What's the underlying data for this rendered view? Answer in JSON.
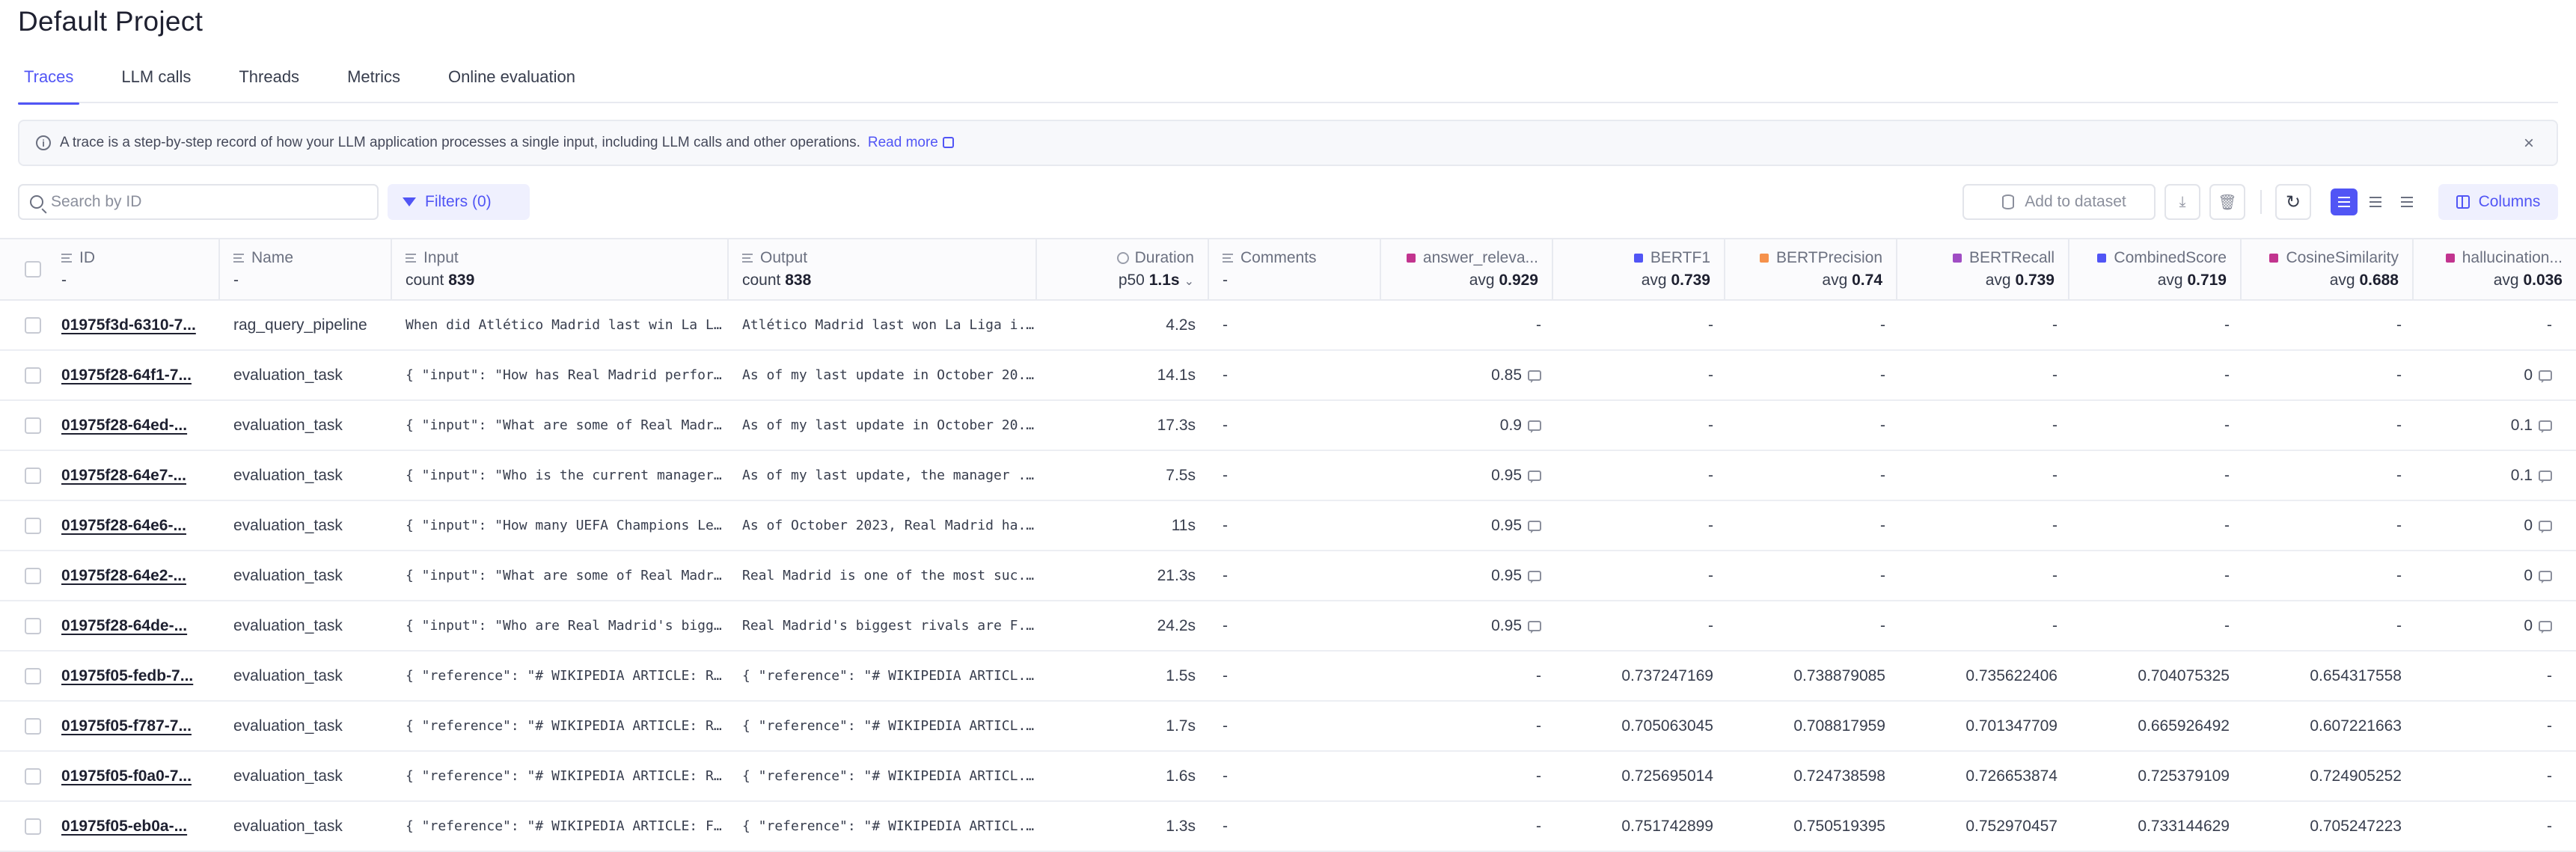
{
  "page": {
    "title": "Default Project"
  },
  "tabs": [
    "Traces",
    "LLM calls",
    "Threads",
    "Metrics",
    "Online evaluation"
  ],
  "banner": {
    "text": "A trace is a step-by-step record of how your LLM application processes a single input, including LLM calls and other operations.",
    "link": "Read more"
  },
  "toolbar": {
    "search_placeholder": "Search by ID",
    "filters_label": "Filters (0)",
    "add_to_dataset": "Add to dataset",
    "columns_label": "Columns"
  },
  "header": {
    "id": {
      "label": "ID",
      "sub": "-"
    },
    "name": {
      "label": "Name",
      "sub": "-"
    },
    "input": {
      "label": "Input",
      "sub_prefix": "count",
      "sub_value": "839"
    },
    "output": {
      "label": "Output",
      "sub_prefix": "count",
      "sub_value": "838"
    },
    "duration": {
      "label": "Duration",
      "sub_prefix": "p50",
      "sub_value": "1.1s"
    },
    "comments": {
      "label": "Comments",
      "sub": "-"
    },
    "metrics": [
      {
        "label": "answer_releva...",
        "avg": "0.929",
        "color": "#c2348f"
      },
      {
        "label": "BERTF1",
        "avg": "0.739",
        "color": "#5155f5"
      },
      {
        "label": "BERTPrecision",
        "avg": "0.74",
        "color": "#f5914b"
      },
      {
        "label": "BERTRecall",
        "avg": "0.739",
        "color": "#a04dc4"
      },
      {
        "label": "CombinedScore",
        "avg": "0.719",
        "color": "#5155f5"
      },
      {
        "label": "CosineSimilarity",
        "avg": "0.688",
        "color": "#c2348f"
      },
      {
        "label": "hallucination...",
        "avg": "0.036",
        "color": "#c2348f"
      }
    ],
    "avg_prefix": "avg"
  },
  "rows": [
    {
      "id": "01975f3d-6310-7...",
      "name": "rag_query_pipeline",
      "input": "When did Atlético Madrid last win La L...",
      "output": "Atlético Madrid last won La Liga i...",
      "duration": "4.2s",
      "comments": "-",
      "m": [
        "-",
        "-",
        "-",
        "-",
        "-",
        "-",
        "-"
      ],
      "fb": [
        false,
        false,
        false,
        false,
        false,
        false,
        false
      ]
    },
    {
      "id": "01975f28-64f1-7...",
      "name": "evaluation_task",
      "input": "{ \"input\": \"How has Real Madrid perfor...",
      "output": "As of my last update in October 20...",
      "duration": "14.1s",
      "comments": "-",
      "m": [
        "0.85",
        "-",
        "-",
        "-",
        "-",
        "-",
        "0"
      ],
      "fb": [
        true,
        false,
        false,
        false,
        false,
        false,
        true
      ]
    },
    {
      "id": "01975f28-64ed-...",
      "name": "evaluation_task",
      "input": "{ \"input\": \"What are some of Real Madr...",
      "output": "As of my last update in October 20...",
      "duration": "17.3s",
      "comments": "-",
      "m": [
        "0.9",
        "-",
        "-",
        "-",
        "-",
        "-",
        "0.1"
      ],
      "fb": [
        true,
        false,
        false,
        false,
        false,
        false,
        true
      ]
    },
    {
      "id": "01975f28-64e7-...",
      "name": "evaluation_task",
      "input": "{ \"input\": \"Who is the current manager...",
      "output": "As of my last update, the manager ...",
      "duration": "7.5s",
      "comments": "-",
      "m": [
        "0.95",
        "-",
        "-",
        "-",
        "-",
        "-",
        "0.1"
      ],
      "fb": [
        true,
        false,
        false,
        false,
        false,
        false,
        true
      ]
    },
    {
      "id": "01975f28-64e6-...",
      "name": "evaluation_task",
      "input": "{ \"input\": \"How many UEFA Champions Le...",
      "output": "As of October 2023, Real Madrid ha...",
      "duration": "11s",
      "comments": "-",
      "m": [
        "0.95",
        "-",
        "-",
        "-",
        "-",
        "-",
        "0"
      ],
      "fb": [
        true,
        false,
        false,
        false,
        false,
        false,
        true
      ]
    },
    {
      "id": "01975f28-64e2-...",
      "name": "evaluation_task",
      "input": "{ \"input\": \"What are some of Real Madr...",
      "output": "Real Madrid is one of the most suc...",
      "duration": "21.3s",
      "comments": "-",
      "m": [
        "0.95",
        "-",
        "-",
        "-",
        "-",
        "-",
        "0"
      ],
      "fb": [
        true,
        false,
        false,
        false,
        false,
        false,
        true
      ]
    },
    {
      "id": "01975f28-64de-...",
      "name": "evaluation_task",
      "input": "{ \"input\": \"Who are Real Madrid's bigg...",
      "output": "Real Madrid's biggest rivals are F...",
      "duration": "24.2s",
      "comments": "-",
      "m": [
        "0.95",
        "-",
        "-",
        "-",
        "-",
        "-",
        "0"
      ],
      "fb": [
        true,
        false,
        false,
        false,
        false,
        false,
        true
      ]
    },
    {
      "id": "01975f05-fedb-7...",
      "name": "evaluation_task",
      "input": "{ \"reference\": \"# WIKIPEDIA ARTICLE: R...",
      "output": "{ \"reference\": \"# WIKIPEDIA ARTICL...",
      "duration": "1.5s",
      "comments": "-",
      "m": [
        "-",
        "0.737247169",
        "0.738879085",
        "0.735622406",
        "0.704075325",
        "0.654317558",
        "-"
      ],
      "fb": [
        false,
        false,
        false,
        false,
        false,
        false,
        false
      ]
    },
    {
      "id": "01975f05-f787-7...",
      "name": "evaluation_task",
      "input": "{ \"reference\": \"# WIKIPEDIA ARTICLE: R...",
      "output": "{ \"reference\": \"# WIKIPEDIA ARTICL...",
      "duration": "1.7s",
      "comments": "-",
      "m": [
        "-",
        "0.705063045",
        "0.708817959",
        "0.701347709",
        "0.665926492",
        "0.607221663",
        "-"
      ],
      "fb": [
        false,
        false,
        false,
        false,
        false,
        false,
        false
      ]
    },
    {
      "id": "01975f05-f0a0-7...",
      "name": "evaluation_task",
      "input": "{ \"reference\": \"# WIKIPEDIA ARTICLE: R...",
      "output": "{ \"reference\": \"# WIKIPEDIA ARTICL...",
      "duration": "1.6s",
      "comments": "-",
      "m": [
        "-",
        "0.725695014",
        "0.724738598",
        "0.726653874",
        "0.725379109",
        "0.724905252",
        "-"
      ],
      "fb": [
        false,
        false,
        false,
        false,
        false,
        false,
        false
      ]
    },
    {
      "id": "01975f05-eb0a-...",
      "name": "evaluation_task",
      "input": "{ \"reference\": \"# WIKIPEDIA ARTICLE: F...",
      "output": "{ \"reference\": \"# WIKIPEDIA ARTICL...",
      "duration": "1.3s",
      "comments": "-",
      "m": [
        "-",
        "0.751742899",
        "0.750519395",
        "0.752970457",
        "0.733144629",
        "0.705247223",
        "-"
      ],
      "fb": [
        false,
        false,
        false,
        false,
        false,
        false,
        false
      ]
    }
  ]
}
